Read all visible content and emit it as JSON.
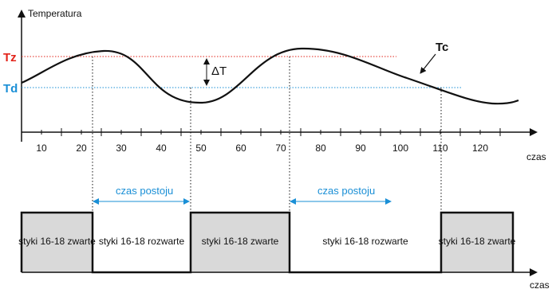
{
  "top_chart": {
    "y_axis_label": "Temperatura",
    "x_axis_label": "czas",
    "tz_label": "Tz",
    "td_label": "Td",
    "tc_label": "Tc",
    "delta_label": "ΔT",
    "x_ticks": [
      "10",
      "20",
      "30",
      "40",
      "50",
      "60",
      "70",
      "80",
      "90",
      "100",
      "110",
      "120"
    ],
    "colors": {
      "tz": "#e2231a",
      "td": "#1a8fd6",
      "curve": "#111111",
      "axis": "#111111"
    }
  },
  "annotations": {
    "idle_label_1": "czas postoju",
    "idle_label_2": "czas postoju",
    "arrow_color": "#1a8fd6"
  },
  "bottom_chart": {
    "x_axis_label": "czas",
    "segments": [
      {
        "label": "styki 16-18 zwarte",
        "state": "closed"
      },
      {
        "label": "styki 16-18 rozwarte",
        "state": "open"
      },
      {
        "label": "styki 16-18 zwarte",
        "state": "closed"
      },
      {
        "label": "styki 16-18 rozwarte",
        "state": "open"
      },
      {
        "label": "styki 16-18 zwarte",
        "state": "closed"
      }
    ],
    "closed_fill": "#d9d9d9"
  }
}
